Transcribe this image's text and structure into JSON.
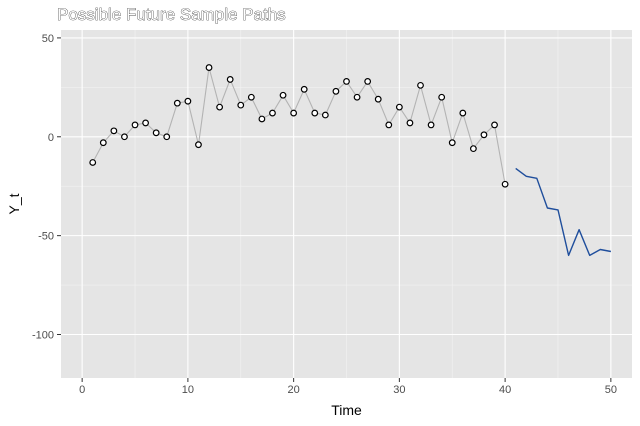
{
  "chart_data": {
    "type": "line",
    "title": "Possible Future Sample Paths",
    "xlabel": "Time",
    "ylabel": "Y_t",
    "xlim": [
      -2,
      52
    ],
    "ylim": [
      -122,
      54
    ],
    "x_ticks": [
      0,
      10,
      20,
      30,
      40,
      50
    ],
    "y_ticks": [
      50,
      0,
      -50,
      -100
    ],
    "grid": true,
    "legend": "none",
    "colors": {
      "panel": "#e5e5e5",
      "grid_major": "#ffffff",
      "grid_minor": "#f2f2f2",
      "observed_line": "#b3b3b3",
      "future_line": "#1f4e9c",
      "point_fill": "#ffffff",
      "point_stroke": "#000000"
    },
    "series": [
      {
        "style": "line+points",
        "x": [
          1,
          2,
          3,
          4,
          5,
          6,
          7,
          8,
          9,
          10,
          11,
          12,
          13,
          14,
          15,
          16,
          17,
          18,
          19,
          20,
          21,
          22,
          23,
          24,
          25,
          26,
          27,
          28,
          29,
          30,
          31,
          32,
          33,
          34,
          35,
          36,
          37,
          38,
          39,
          40
        ],
        "y": [
          -13,
          -3,
          3,
          0,
          6,
          7,
          2,
          0,
          17,
          18,
          -4,
          35,
          15,
          29,
          16,
          20,
          9,
          12,
          21,
          12,
          24,
          12,
          11,
          23,
          28,
          20,
          28,
          19,
          6,
          15,
          7,
          26,
          6,
          20,
          -3,
          12,
          -6,
          1,
          6,
          -24
        ]
      },
      {
        "style": "line",
        "x": [
          41,
          42,
          43,
          44,
          45,
          46,
          47,
          48,
          49,
          50
        ],
        "y": [
          -16,
          -20,
          -21,
          -36,
          -37,
          -60,
          -47,
          -60,
          -57,
          -58
        ]
      }
    ]
  }
}
